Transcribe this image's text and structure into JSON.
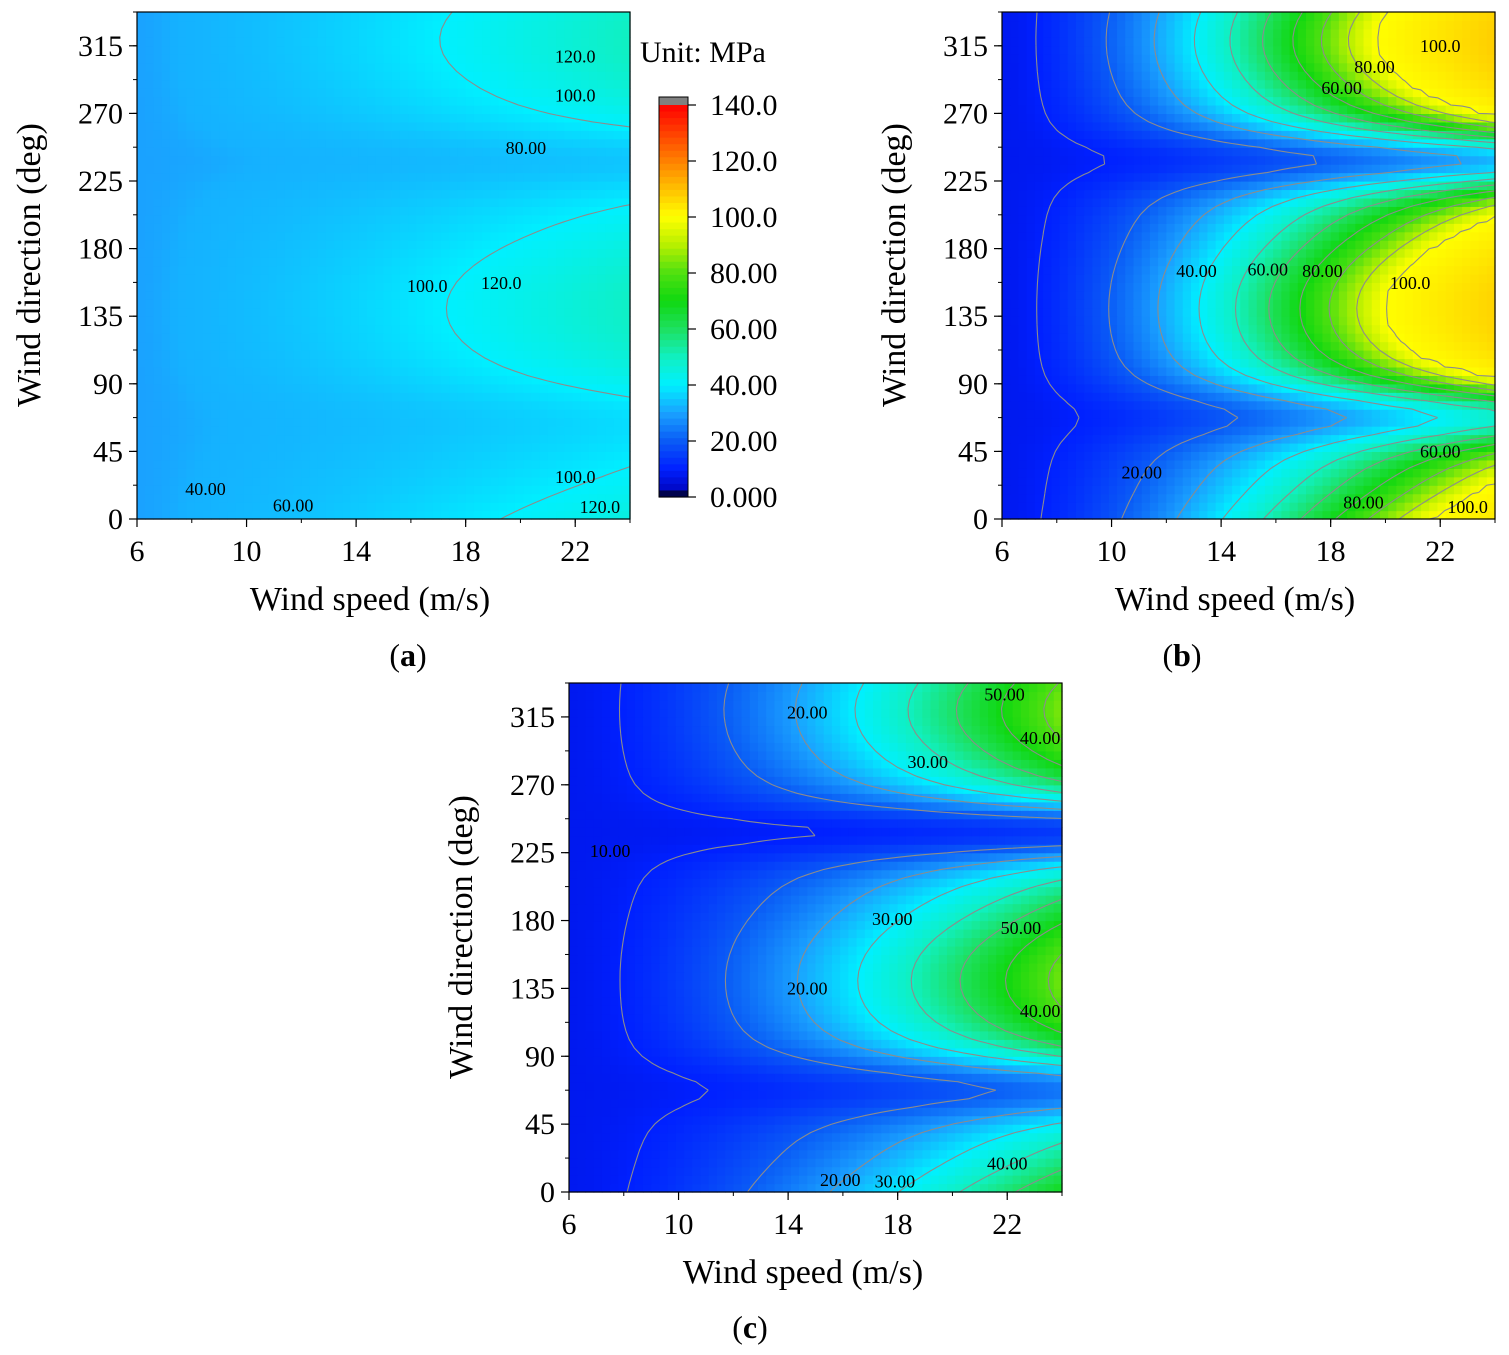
{
  "chart_data": [
    {
      "id": "a",
      "type": "heatmap",
      "caption_letter": "a",
      "xlabel": "Wind speed (m/s)",
      "ylabel": "Wind direction (deg)",
      "xlim": [
        6,
        24
      ],
      "ylim": [
        0,
        337.5
      ],
      "xticks": [
        "6",
        "10",
        "14",
        "18",
        "22"
      ],
      "yticks": [
        "0",
        "45",
        "90",
        "135",
        "180",
        "225",
        "270",
        "315"
      ],
      "field": {
        "base": 30,
        "a": 0.38,
        "slope": 70,
        "sat": 32,
        "dip225": 0.42,
        "dip45": 0.22,
        "dip300": 0.05
      },
      "contour_labels": [
        {
          "text": "40.00",
          "x": 8.5,
          "y": 20
        },
        {
          "text": "60.00",
          "x": 11.7,
          "y": 9
        },
        {
          "text": "80.00",
          "x": 20.2,
          "y": 247
        },
        {
          "text": "100.0",
          "x": 22,
          "y": 282
        },
        {
          "text": "100.0",
          "x": 22,
          "y": 28
        },
        {
          "text": "100.0",
          "x": 16.6,
          "y": 155
        },
        {
          "text": "120.0",
          "x": 19.3,
          "y": 157
        },
        {
          "text": "120.0",
          "x": 22,
          "y": 308
        },
        {
          "text": "120.0",
          "x": 22.9,
          "y": 8
        }
      ]
    },
    {
      "id": "b",
      "type": "heatmap",
      "caption_letter": "b",
      "xlabel": "Wind speed (m/s)",
      "ylabel": "Wind direction (deg)",
      "xlim": [
        6,
        24
      ],
      "ylim": [
        0,
        337.5
      ],
      "xticks": [
        "6",
        "10",
        "14",
        "18",
        "22"
      ],
      "yticks": [
        "0",
        "45",
        "90",
        "135",
        "180",
        "225",
        "270",
        "315"
      ],
      "field": {
        "base": 8,
        "a": 0.25,
        "slope": 92,
        "sat": 100,
        "dip225": 0.55,
        "dip45": 0.45,
        "dip300": 0.05
      },
      "contour_labels": [
        {
          "text": "20.00",
          "x": 11.1,
          "y": 31
        },
        {
          "text": "40.00",
          "x": 13.1,
          "y": 165
        },
        {
          "text": "60.00",
          "x": 15.7,
          "y": 166
        },
        {
          "text": "80.00",
          "x": 17.7,
          "y": 165
        },
        {
          "text": "100.0",
          "x": 20.9,
          "y": 157
        },
        {
          "text": "60.00",
          "x": 18.4,
          "y": 287
        },
        {
          "text": "80.00",
          "x": 19.6,
          "y": 301
        },
        {
          "text": "100.0",
          "x": 22,
          "y": 315
        },
        {
          "text": "60.00",
          "x": 22,
          "y": 45
        },
        {
          "text": "80.00",
          "x": 19.2,
          "y": 11
        },
        {
          "text": "100.0",
          "x": 23,
          "y": 8
        }
      ]
    },
    {
      "id": "c",
      "type": "heatmap",
      "caption_letter": "c",
      "xlabel": "Wind speed (m/s)",
      "ylabel": "Wind direction (deg)",
      "xlim": [
        6,
        24
      ],
      "ylim": [
        0,
        337.5
      ],
      "xticks": [
        "6",
        "10",
        "14",
        "18",
        "22"
      ],
      "yticks": [
        "0",
        "45",
        "90",
        "135",
        "180",
        "225",
        "270",
        "315"
      ],
      "field": {
        "base": 8,
        "a": 0.3,
        "slope": 48,
        "sat": 100,
        "dip225": 0.62,
        "dip45": 0.5,
        "dip300": 0.02
      },
      "contour_labels": [
        {
          "text": "10.00",
          "x": 7.5,
          "y": 226
        },
        {
          "text": "20.00",
          "x": 14.7,
          "y": 318
        },
        {
          "text": "30.00",
          "x": 19.1,
          "y": 285
        },
        {
          "text": "40.00",
          "x": 23.2,
          "y": 301
        },
        {
          "text": "50.00",
          "x": 21.9,
          "y": 330
        },
        {
          "text": "30.00",
          "x": 17.8,
          "y": 181
        },
        {
          "text": "50.00",
          "x": 22.5,
          "y": 175
        },
        {
          "text": "20.00",
          "x": 14.7,
          "y": 135
        },
        {
          "text": "40.00",
          "x": 23.2,
          "y": 120
        },
        {
          "text": "40.00",
          "x": 22,
          "y": 19
        },
        {
          "text": "20.00",
          "x": 15.9,
          "y": 8
        },
        {
          "text": "30.00",
          "x": 17.9,
          "y": 7
        }
      ]
    }
  ],
  "colorbar": {
    "title": "Unit: MPa",
    "ticks": [
      "140.0",
      "120.0",
      "100.0",
      "80.00",
      "60.00",
      "40.00",
      "20.00",
      "0.000"
    ],
    "min": 0,
    "max": 140,
    "stops": [
      {
        "v": 0,
        "c": "#000000"
      },
      {
        "v": 3,
        "c": "#0008c8"
      },
      {
        "v": 10,
        "c": "#0020ff"
      },
      {
        "v": 20,
        "c": "#0a5cf6"
      },
      {
        "v": 30,
        "c": "#1aa2ff"
      },
      {
        "v": 40,
        "c": "#00f0ff"
      },
      {
        "v": 50,
        "c": "#10f0c0"
      },
      {
        "v": 60,
        "c": "#1ee060"
      },
      {
        "v": 70,
        "c": "#10d810"
      },
      {
        "v": 80,
        "c": "#50e010"
      },
      {
        "v": 90,
        "c": "#b8f000"
      },
      {
        "v": 100,
        "c": "#ffff00"
      },
      {
        "v": 110,
        "c": "#ffc000"
      },
      {
        "v": 120,
        "c": "#ff8000"
      },
      {
        "v": 130,
        "c": "#ff4000"
      },
      {
        "v": 140,
        "c": "#ff0000"
      }
    ],
    "over_color": "#808080"
  },
  "colors": {
    "contour_line": "#8c8c8c",
    "frame": "#000000"
  }
}
